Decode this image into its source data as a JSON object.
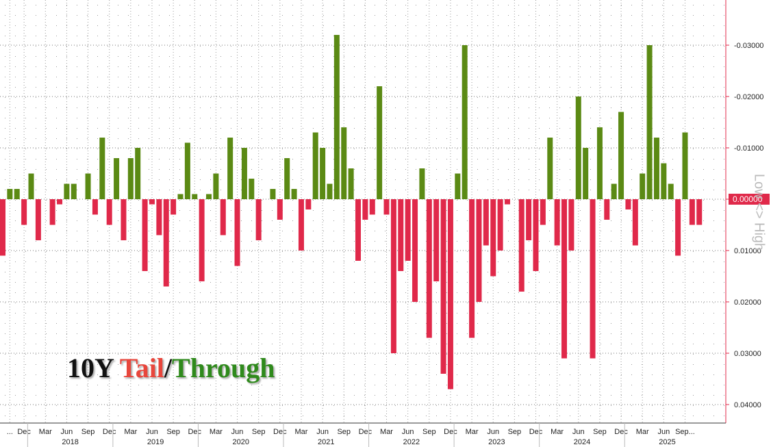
{
  "chart_data": {
    "type": "bar",
    "title_parts": [
      "10Y",
      "Tail",
      "/",
      "Through"
    ],
    "title_colors": [
      "#111111",
      "#e8463c",
      "#111111",
      "#2f8a1c"
    ],
    "axis_label": "Low <> High",
    "categories": [
      null,
      "...",
      null,
      "Dec",
      null,
      null,
      "Mar",
      null,
      null,
      "Jun",
      null,
      null,
      "Sep",
      null,
      null,
      "Dec",
      null,
      null,
      "Mar",
      null,
      null,
      "Jun",
      null,
      null,
      "Sep",
      null,
      null,
      "Dec",
      null,
      null,
      "Mar",
      null,
      null,
      "Jun",
      null,
      null,
      "Sep",
      null,
      null,
      "Dec",
      null,
      null,
      "Mar",
      null,
      null,
      "Jun",
      null,
      null,
      "Sep",
      null,
      null,
      "Dec",
      null,
      null,
      "Mar",
      null,
      null,
      "Jun",
      null,
      null,
      "Sep",
      null,
      null,
      "Dec",
      null,
      null,
      "Mar",
      null,
      null,
      "Jun",
      null,
      null,
      "Sep",
      null,
      null,
      "Dec",
      null,
      null,
      "Mar",
      null,
      null,
      "Jun",
      null,
      null,
      "Sep",
      null,
      null,
      "Dec",
      null,
      null,
      "Mar",
      null,
      null,
      "Jun",
      null,
      null,
      "Sep...",
      null,
      null
    ],
    "years": [
      "2018",
      "2019",
      "2020",
      "2021",
      "2022",
      "2023",
      "2024",
      "2025"
    ],
    "values": [
      0.011,
      -0.002,
      -0.002,
      0.005,
      -0.005,
      0.008,
      0,
      0.005,
      0.001,
      -0.003,
      -0.003,
      0,
      -0.005,
      0.003,
      -0.012,
      0.005,
      -0.008,
      0.008,
      -0.008,
      -0.01,
      0.014,
      0.001,
      0.007,
      0.017,
      0.003,
      -0.001,
      -0.011,
      -0.001,
      0.016,
      -0.001,
      -0.005,
      0.007,
      -0.012,
      0.013,
      -0.01,
      -0.004,
      0.008,
      0,
      -0.002,
      0.004,
      -0.008,
      -0.002,
      0.01,
      0.002,
      -0.013,
      -0.01,
      -0.003,
      -0.032,
      -0.014,
      -0.006,
      0.012,
      0.004,
      0.003,
      -0.022,
      0.003,
      0.03,
      0.014,
      0.012,
      0.02,
      -0.006,
      0.027,
      0.016,
      0.034,
      0.037,
      -0.005,
      -0.03,
      0.027,
      0.02,
      0.009,
      0.015,
      0.01,
      0.001,
      0,
      0.018,
      0.008,
      0.014,
      0.005,
      -0.012,
      0.009,
      0.031,
      0.01,
      -0.02,
      -0.01,
      0.031,
      -0.014,
      0.004,
      -0.003,
      -0.017,
      0.002,
      0.009,
      -0.005,
      -0.03,
      -0.012,
      -0.007,
      -0.003,
      0.011,
      -0.013,
      0.005,
      0.005
    ],
    "color_positive": "#e0294a",
    "color_negative": "#5b8a14",
    "axis_color": "#e0294a",
    "ylim": [
      0.0436,
      -0.0388
    ],
    "yticks": [
      {
        "value": -0.03,
        "label": "-0.03000"
      },
      {
        "value": -0.02,
        "label": "-0.02000"
      },
      {
        "value": -0.01,
        "label": "-0.01000"
      },
      {
        "value": 0,
        "label": "0.00000"
      },
      {
        "value": 0.01,
        "label": "0.01000"
      },
      {
        "value": 0.02,
        "label": "0.02000"
      },
      {
        "value": 0.03,
        "label": "0.03000"
      },
      {
        "value": 0.04,
        "label": "0.04000"
      }
    ],
    "highlight_tick": 3,
    "grid": true
  }
}
